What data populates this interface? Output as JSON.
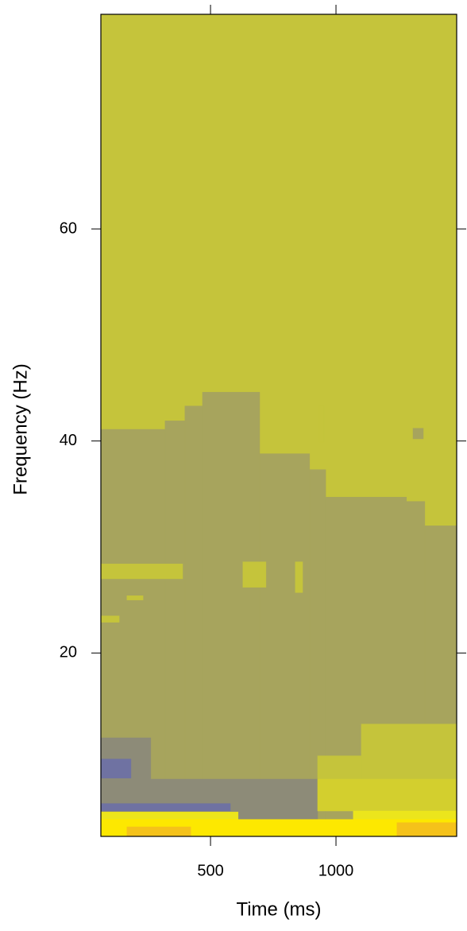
{
  "chart_data": {
    "type": "levelplot",
    "x_label": "Time (ms)",
    "y_label": "Frequency (Hz)",
    "xlim": [
      63,
      1481
    ],
    "ylim": [
      2.7,
      80.25
    ],
    "xticks": [
      500,
      1000
    ],
    "yticks": [
      20,
      40,
      60
    ],
    "colors": [
      "#6f72a2",
      "#8d8b78",
      "#a7a45d",
      "#c5c43b",
      "#d3cf2e",
      "#ece51c",
      "#fde800",
      "#f5c21a"
    ],
    "regions": [
      {
        "x": [
          63,
          1481
        ],
        "y": [
          2.7,
          80.25
        ],
        "z": 3
      },
      {
        "x": [
          63,
          319
        ],
        "y": [
          2.7,
          41.1
        ],
        "z": 2
      },
      {
        "x": [
          319,
          398
        ],
        "y": [
          2.7,
          41.9
        ],
        "z": 2
      },
      {
        "x": [
          398,
          468
        ],
        "y": [
          2.7,
          43.3
        ],
        "z": 2
      },
      {
        "x": [
          468,
          696
        ],
        "y": [
          2.7,
          44.6
        ],
        "z": 2
      },
      {
        "x": [
          696,
          895
        ],
        "y": [
          2.7,
          38.8
        ],
        "z": 2
      },
      {
        "x": [
          895,
          959
        ],
        "y": [
          2.7,
          37.3
        ],
        "z": 2
      },
      {
        "x": [
          959,
          1281
        ],
        "y": [
          2.7,
          34.7
        ],
        "z": 2
      },
      {
        "x": [
          1281,
          1354
        ],
        "y": [
          2.7,
          34.3
        ],
        "z": 2
      },
      {
        "x": [
          1354,
          1481
        ],
        "y": [
          2.7,
          32.0
        ],
        "z": 2
      },
      {
        "x": [
          933,
          952
        ],
        "y": [
          39.9,
          43.3
        ],
        "z": 3
      },
      {
        "x": [
          1307,
          1348
        ],
        "y": [
          40.2,
          41.2
        ],
        "z": 2
      },
      {
        "x": [
          63,
          389
        ],
        "y": [
          27.0,
          28.4
        ],
        "z": 3
      },
      {
        "x": [
          629,
          721
        ],
        "y": [
          26.2,
          28.6
        ],
        "z": 3
      },
      {
        "x": [
          838,
          867
        ],
        "y": [
          25.7,
          28.6
        ],
        "z": 3
      },
      {
        "x": [
          167,
          231
        ],
        "y": [
          25.0,
          25.4
        ],
        "z": 3
      },
      {
        "x": [
          63,
          136
        ],
        "y": [
          22.9,
          23.5
        ],
        "z": 3
      },
      {
        "x": [
          1101,
          1481
        ],
        "y": [
          7.5,
          13.3
        ],
        "z": 3
      },
      {
        "x": [
          927,
          1101
        ],
        "y": [
          5.5,
          10.3
        ],
        "z": 3
      },
      {
        "x": [
          63,
          262
        ],
        "y": [
          6.6,
          12.0
        ],
        "z": 1
      },
      {
        "x": [
          63,
          183
        ],
        "y": [
          8.2,
          10.0
        ],
        "z": 0
      },
      {
        "x": [
          63,
          927
        ],
        "y": [
          4.3,
          8.1
        ],
        "z": 1
      },
      {
        "x": [
          63,
          579
        ],
        "y": [
          5.1,
          5.8
        ],
        "z": 0
      },
      {
        "x": [
          927,
          1481
        ],
        "y": [
          5.1,
          8.1
        ],
        "z": 4
      },
      {
        "x": [
          1069,
          1481
        ],
        "y": [
          3.6,
          5.1
        ],
        "z": 5
      },
      {
        "x": [
          63,
          610
        ],
        "y": [
          4.3,
          5.0
        ],
        "z": 5
      },
      {
        "x": [
          63,
          1481
        ],
        "y": [
          2.7,
          4.3
        ],
        "z": 6
      },
      {
        "x": [
          167,
          421
        ],
        "y": [
          2.7,
          3.6
        ],
        "z": 7
      },
      {
        "x": [
          1243,
          1481
        ],
        "y": [
          2.7,
          4.0
        ],
        "z": 7
      }
    ]
  }
}
